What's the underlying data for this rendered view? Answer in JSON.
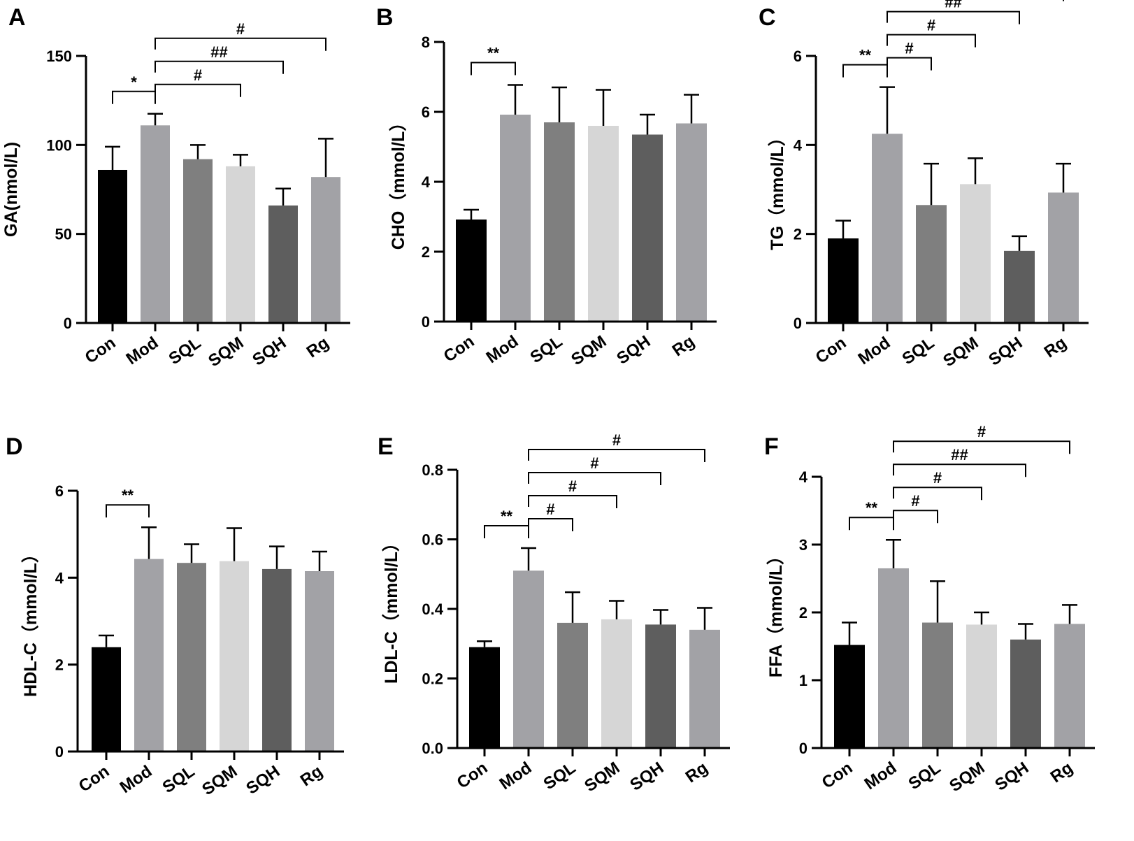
{
  "figure": {
    "categories": [
      "Con",
      "Mod",
      "SQL",
      "SQM",
      "SQH",
      "Rg"
    ],
    "bar_colors": [
      "#000000",
      "#a2a2a6",
      "#7f7f7f",
      "#d6d6d6",
      "#5e5e5e",
      "#a2a2a6"
    ]
  },
  "chart_data": [
    {
      "panel_label": "A",
      "type": "bar",
      "ylabel": "GA(nmol/L)",
      "ylim": [
        0,
        150
      ],
      "yticks": [
        0,
        50,
        100,
        150
      ],
      "yticklabels": [
        "0",
        "50",
        "100",
        "150"
      ],
      "categories": [
        "Con",
        "Mod",
        "SQL",
        "SQM",
        "SQH",
        "Rg"
      ],
      "values": [
        86,
        111,
        92,
        88,
        66,
        82
      ],
      "errors": [
        13,
        6.5,
        8,
        6.5,
        9.5,
        21.5
      ],
      "annotations": [
        {
          "from": "Con",
          "to": "Mod",
          "label": "*"
        },
        {
          "from": "Mod",
          "to": "SQM",
          "label": "#"
        },
        {
          "from": "Mod",
          "to": "SQH",
          "label": "##"
        },
        {
          "from": "Mod",
          "to": "Rg",
          "label": "#"
        }
      ]
    },
    {
      "panel_label": "B",
      "type": "bar",
      "ylabel": "CHO（mmol/L）",
      "ylim": [
        0,
        8
      ],
      "yticks": [
        0,
        2,
        4,
        6,
        8
      ],
      "yticklabels": [
        "0",
        "2",
        "4",
        "6",
        "8"
      ],
      "categories": [
        "Con",
        "Mod",
        "SQL",
        "SQM",
        "SQH",
        "Rg"
      ],
      "values": [
        2.92,
        5.92,
        5.7,
        5.6,
        5.35,
        5.67
      ],
      "errors": [
        0.28,
        0.85,
        1.0,
        1.03,
        0.57,
        0.82
      ],
      "annotations": [
        {
          "from": "Con",
          "to": "Mod",
          "label": "**"
        }
      ]
    },
    {
      "panel_label": "C",
      "type": "bar",
      "ylabel": "TG（mmol/L）",
      "ylim": [
        0,
        6
      ],
      "yticks": [
        0,
        2,
        4,
        6
      ],
      "yticklabels": [
        "0",
        "2",
        "4",
        "6"
      ],
      "categories": [
        "Con",
        "Mod",
        "SQL",
        "SQM",
        "SQH",
        "Rg"
      ],
      "values": [
        1.9,
        4.25,
        2.65,
        3.12,
        1.62,
        2.93
      ],
      "errors": [
        0.4,
        1.05,
        0.93,
        0.58,
        0.33,
        0.65
      ],
      "annotations": [
        {
          "from": "Con",
          "to": "Mod",
          "label": "**"
        },
        {
          "from": "Mod",
          "to": "SQL",
          "label": "#"
        },
        {
          "from": "Mod",
          "to": "SQM",
          "label": "#"
        },
        {
          "from": "Mod",
          "to": "SQH",
          "label": "##"
        },
        {
          "from": "Mod",
          "to": "Rg",
          "label": "#"
        }
      ]
    },
    {
      "panel_label": "D",
      "type": "bar",
      "ylabel": "HDL-C（mmol/L）",
      "ylim": [
        0,
        6
      ],
      "yticks": [
        0,
        2,
        4,
        6
      ],
      "yticklabels": [
        "0",
        "2",
        "4",
        "6"
      ],
      "categories": [
        "Con",
        "Mod",
        "SQL",
        "SQM",
        "SQH",
        "Rg"
      ],
      "values": [
        2.4,
        4.43,
        4.34,
        4.38,
        4.2,
        4.15
      ],
      "errors": [
        0.27,
        0.73,
        0.43,
        0.76,
        0.52,
        0.45
      ],
      "annotations": [
        {
          "from": "Con",
          "to": "Mod",
          "label": "**"
        }
      ]
    },
    {
      "panel_label": "E",
      "type": "bar",
      "ylabel": "LDL-C（mmol/L）",
      "ylim": [
        0,
        0.8
      ],
      "yticks": [
        0,
        0.2,
        0.4,
        0.6,
        0.8
      ],
      "yticklabels": [
        "0.0",
        "0.2",
        "0.4",
        "0.6",
        "0.8"
      ],
      "categories": [
        "Con",
        "Mod",
        "SQL",
        "SQM",
        "SQH",
        "Rg"
      ],
      "values": [
        0.29,
        0.51,
        0.36,
        0.37,
        0.355,
        0.34
      ],
      "errors": [
        0.017,
        0.065,
        0.088,
        0.053,
        0.042,
        0.063
      ],
      "annotations": [
        {
          "from": "Con",
          "to": "Mod",
          "label": "**"
        },
        {
          "from": "Mod",
          "to": "SQL",
          "label": "#"
        },
        {
          "from": "Mod",
          "to": "SQM",
          "label": "#"
        },
        {
          "from": "Mod",
          "to": "SQH",
          "label": "#"
        },
        {
          "from": "Mod",
          "to": "Rg",
          "label": "#"
        }
      ]
    },
    {
      "panel_label": "F",
      "type": "bar",
      "ylabel": "FFA（mmol/L）",
      "ylim": [
        0,
        4
      ],
      "yticks": [
        0,
        1,
        2,
        3,
        4
      ],
      "yticklabels": [
        "0",
        "1",
        "2",
        "3",
        "4"
      ],
      "categories": [
        "Con",
        "Mod",
        "SQL",
        "SQM",
        "SQH",
        "Rg"
      ],
      "values": [
        1.52,
        2.65,
        1.85,
        1.82,
        1.6,
        1.83
      ],
      "errors": [
        0.33,
        0.42,
        0.61,
        0.18,
        0.23,
        0.28
      ],
      "annotations": [
        {
          "from": "Con",
          "to": "Mod",
          "label": "**"
        },
        {
          "from": "Mod",
          "to": "SQL",
          "label": "#"
        },
        {
          "from": "Mod",
          "to": "SQM",
          "label": "#"
        },
        {
          "from": "Mod",
          "to": "SQH",
          "label": "##"
        },
        {
          "from": "Mod",
          "to": "Rg",
          "label": "#"
        }
      ]
    }
  ]
}
